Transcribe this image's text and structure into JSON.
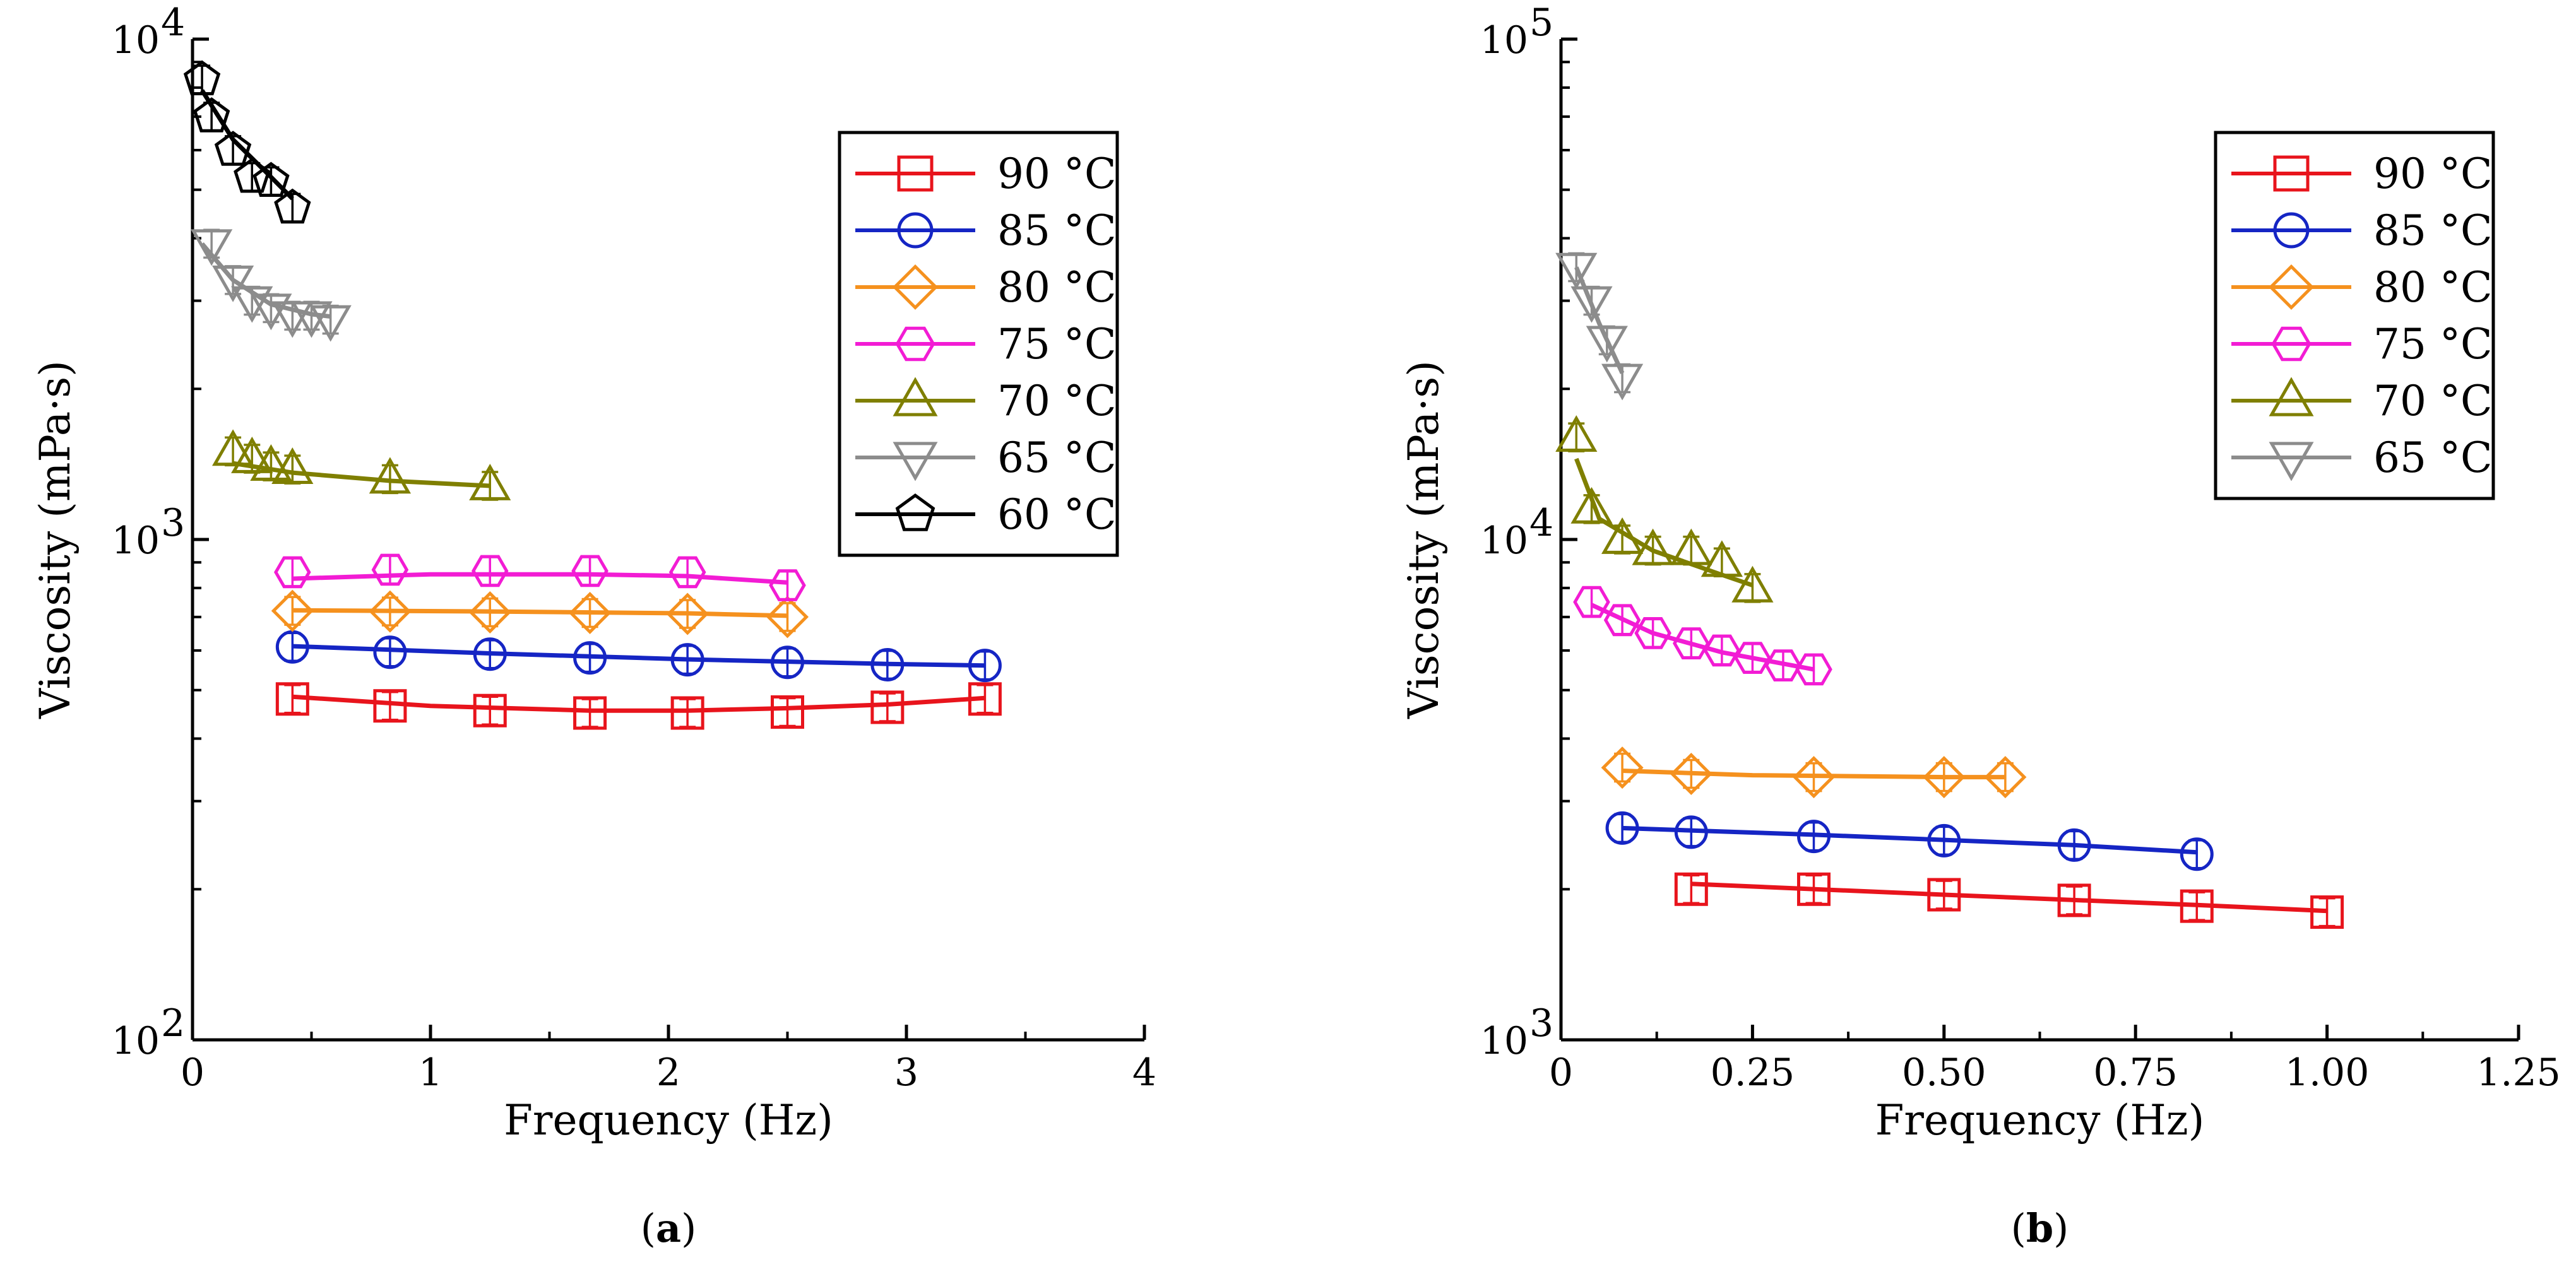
{
  "chart_data": [
    {
      "type": "scatter",
      "panel": "(a)",
      "panel_letter": "a",
      "xlabel": "Frequency (Hz)",
      "ylabel": "Viscosity (mPa·s)",
      "xlim": [
        0,
        4
      ],
      "ylim": [
        100,
        10000
      ],
      "yscale": "log",
      "xticks": [
        "0",
        "1",
        "2",
        "3",
        "4"
      ],
      "yticks": [
        {
          "base": "10",
          "exp": "2"
        },
        {
          "base": "10",
          "exp": "3"
        },
        {
          "base": "10",
          "exp": "4"
        }
      ],
      "legend": "top-right",
      "series": [
        {
          "name": "90 °C",
          "label_num": "90",
          "label_unit": "°C",
          "color": "#e8141c",
          "marker": "square",
          "x": [
            0.42,
            0.83,
            1.25,
            1.67,
            2.08,
            2.5,
            2.92,
            3.33
          ],
          "y": [
            480,
            465,
            455,
            450,
            450,
            452,
            462,
            480
          ],
          "fit": [
            [
              0.42,
              485
            ],
            [
              1.0,
              465
            ],
            [
              1.67,
              455
            ],
            [
              2.08,
              455
            ],
            [
              2.5,
              460
            ],
            [
              2.92,
              468
            ],
            [
              3.33,
              482
            ]
          ]
        },
        {
          "name": "85 °C",
          "label_num": "85",
          "label_unit": "°C",
          "color": "#1525c4",
          "marker": "circle",
          "x": [
            0.42,
            0.83,
            1.25,
            1.67,
            2.08,
            2.5,
            2.92,
            3.33
          ],
          "y": [
            610,
            595,
            590,
            580,
            575,
            568,
            562,
            560
          ],
          "fit": [
            [
              0.42,
              612
            ],
            [
              1.25,
              592
            ],
            [
              2.08,
              576
            ],
            [
              2.92,
              564
            ],
            [
              3.33,
              560
            ]
          ]
        },
        {
          "name": "80 °C",
          "label_num": "80",
          "label_unit": "°C",
          "color": "#f5911e",
          "marker": "diamond",
          "x": [
            0.42,
            0.83,
            1.25,
            1.67,
            2.08,
            2.5
          ],
          "y": [
            720,
            718,
            715,
            713,
            710,
            700
          ],
          "fit": [
            [
              0.42,
              722
            ],
            [
              1.25,
              718
            ],
            [
              2.08,
              712
            ],
            [
              2.5,
              704
            ]
          ]
        },
        {
          "name": "75 °C",
          "label_num": "75",
          "label_unit": "°C",
          "color": "#f21cd4",
          "marker": "hexagon",
          "x": [
            0.42,
            0.83,
            1.25,
            1.67,
            2.08,
            2.5
          ],
          "y": [
            860,
            870,
            865,
            865,
            860,
            810
          ],
          "fit": [
            [
              0.42,
              835
            ],
            [
              1.0,
              852
            ],
            [
              1.67,
              852
            ],
            [
              2.08,
              845
            ],
            [
              2.5,
              820
            ]
          ]
        },
        {
          "name": "70 °C",
          "label_num": "70",
          "label_unit": "°C",
          "color": "#7f7f00",
          "marker": "triangle-up",
          "x": [
            0.17,
            0.25,
            0.33,
            0.42,
            0.83,
            1.25
          ],
          "y": [
            1500,
            1450,
            1400,
            1380,
            1320,
            1280
          ],
          "fit": [
            [
              0.17,
              1420
            ],
            [
              0.42,
              1360
            ],
            [
              0.83,
              1310
            ],
            [
              1.25,
              1280
            ]
          ]
        },
        {
          "name": "65 °C",
          "label_num": "65",
          "label_unit": "°C",
          "color": "#8c8c8c",
          "marker": "triangle-down",
          "x": [
            0.08,
            0.17,
            0.25,
            0.33,
            0.42,
            0.5,
            0.58
          ],
          "y": [
            3900,
            3300,
            3000,
            2900,
            2800,
            2800,
            2750
          ],
          "fit": [
            [
              0.04,
              3900
            ],
            [
              0.17,
              3300
            ],
            [
              0.33,
              2950
            ],
            [
              0.5,
              2820
            ],
            [
              0.58,
              2790
            ]
          ]
        },
        {
          "name": "60 °C",
          "label_num": "60",
          "label_unit": "°C",
          "color": "#000000",
          "marker": "pentagon",
          "x": [
            0.04,
            0.08,
            0.17,
            0.25,
            0.33,
            0.42
          ],
          "y": [
            8300,
            7000,
            6000,
            5300,
            5200,
            4600
          ],
          "fit": [
            [
              0.04,
              7900
            ],
            [
              0.17,
              6300
            ],
            [
              0.33,
              5300
            ],
            [
              0.42,
              4800
            ]
          ]
        }
      ]
    },
    {
      "type": "scatter",
      "panel": "(b)",
      "panel_letter": "b",
      "xlabel": "Frequency (Hz)",
      "ylabel": "Viscosity (mPa·s)",
      "xlim": [
        0,
        1.25
      ],
      "ylim": [
        1000,
        100000
      ],
      "yscale": "log",
      "xticks": [
        "0",
        "0.25",
        "0.50",
        "0.75",
        "1.00",
        "1.25"
      ],
      "yticks": [
        {
          "base": "10",
          "exp": "3"
        },
        {
          "base": "10",
          "exp": "4"
        },
        {
          "base": "10",
          "exp": "5"
        }
      ],
      "legend": "top-right",
      "series": [
        {
          "name": "90 °C",
          "label_num": "90",
          "label_unit": "°C",
          "color": "#e8141c",
          "marker": "square",
          "x": [
            0.17,
            0.33,
            0.5,
            0.67,
            0.83,
            1.0
          ],
          "y": [
            2000,
            2000,
            1950,
            1900,
            1850,
            1800
          ],
          "fit": [
            [
              0.17,
              2050
            ],
            [
              0.5,
              1950
            ],
            [
              0.83,
              1860
            ],
            [
              1.0,
              1810
            ]
          ]
        },
        {
          "name": "85 °C",
          "label_num": "85",
          "label_unit": "°C",
          "color": "#1525c4",
          "marker": "circle",
          "x": [
            0.08,
            0.17,
            0.33,
            0.5,
            0.67,
            0.83
          ],
          "y": [
            2650,
            2600,
            2550,
            2500,
            2450,
            2350
          ],
          "fit": [
            [
              0.08,
              2650
            ],
            [
              0.33,
              2570
            ],
            [
              0.67,
              2450
            ],
            [
              0.83,
              2370
            ]
          ]
        },
        {
          "name": "80 °C",
          "label_num": "80",
          "label_unit": "°C",
          "color": "#f5911e",
          "marker": "diamond",
          "x": [
            0.08,
            0.17,
            0.33,
            0.5,
            0.58
          ],
          "y": [
            3500,
            3400,
            3350,
            3350,
            3350
          ],
          "fit": [
            [
              0.08,
              3450
            ],
            [
              0.25,
              3380
            ],
            [
              0.5,
              3350
            ],
            [
              0.58,
              3350
            ]
          ]
        },
        {
          "name": "75 °C",
          "label_num": "75",
          "label_unit": "°C",
          "color": "#f21cd4",
          "marker": "hexagon",
          "x": [
            0.04,
            0.08,
            0.12,
            0.17,
            0.21,
            0.25,
            0.29,
            0.33
          ],
          "y": [
            7500,
            6900,
            6500,
            6200,
            6000,
            5800,
            5600,
            5500
          ],
          "fit": [
            [
              0.04,
              7400
            ],
            [
              0.12,
              6500
            ],
            [
              0.21,
              5950
            ],
            [
              0.33,
              5500
            ]
          ]
        },
        {
          "name": "70 °C",
          "label_num": "70",
          "label_unit": "°C",
          "color": "#7f7f00",
          "marker": "triangle-up",
          "x": [
            0.02,
            0.04,
            0.08,
            0.12,
            0.17,
            0.21,
            0.25
          ],
          "y": [
            16000,
            11500,
            10000,
            9500,
            9500,
            9000,
            8000
          ],
          "fit": [
            [
              0.02,
              14500
            ],
            [
              0.05,
              11000
            ],
            [
              0.12,
              9500
            ],
            [
              0.21,
              8500
            ],
            [
              0.25,
              8100
            ]
          ]
        },
        {
          "name": "65 °C",
          "label_num": "65",
          "label_unit": "°C",
          "color": "#8c8c8c",
          "marker": "triangle-down",
          "x": [
            0.02,
            0.04,
            0.06,
            0.08
          ],
          "y": [
            35000,
            30000,
            25000,
            21000
          ],
          "fit": [
            [
              0.02,
              35000
            ],
            [
              0.05,
              27000
            ],
            [
              0.08,
              21500
            ]
          ]
        }
      ]
    }
  ]
}
